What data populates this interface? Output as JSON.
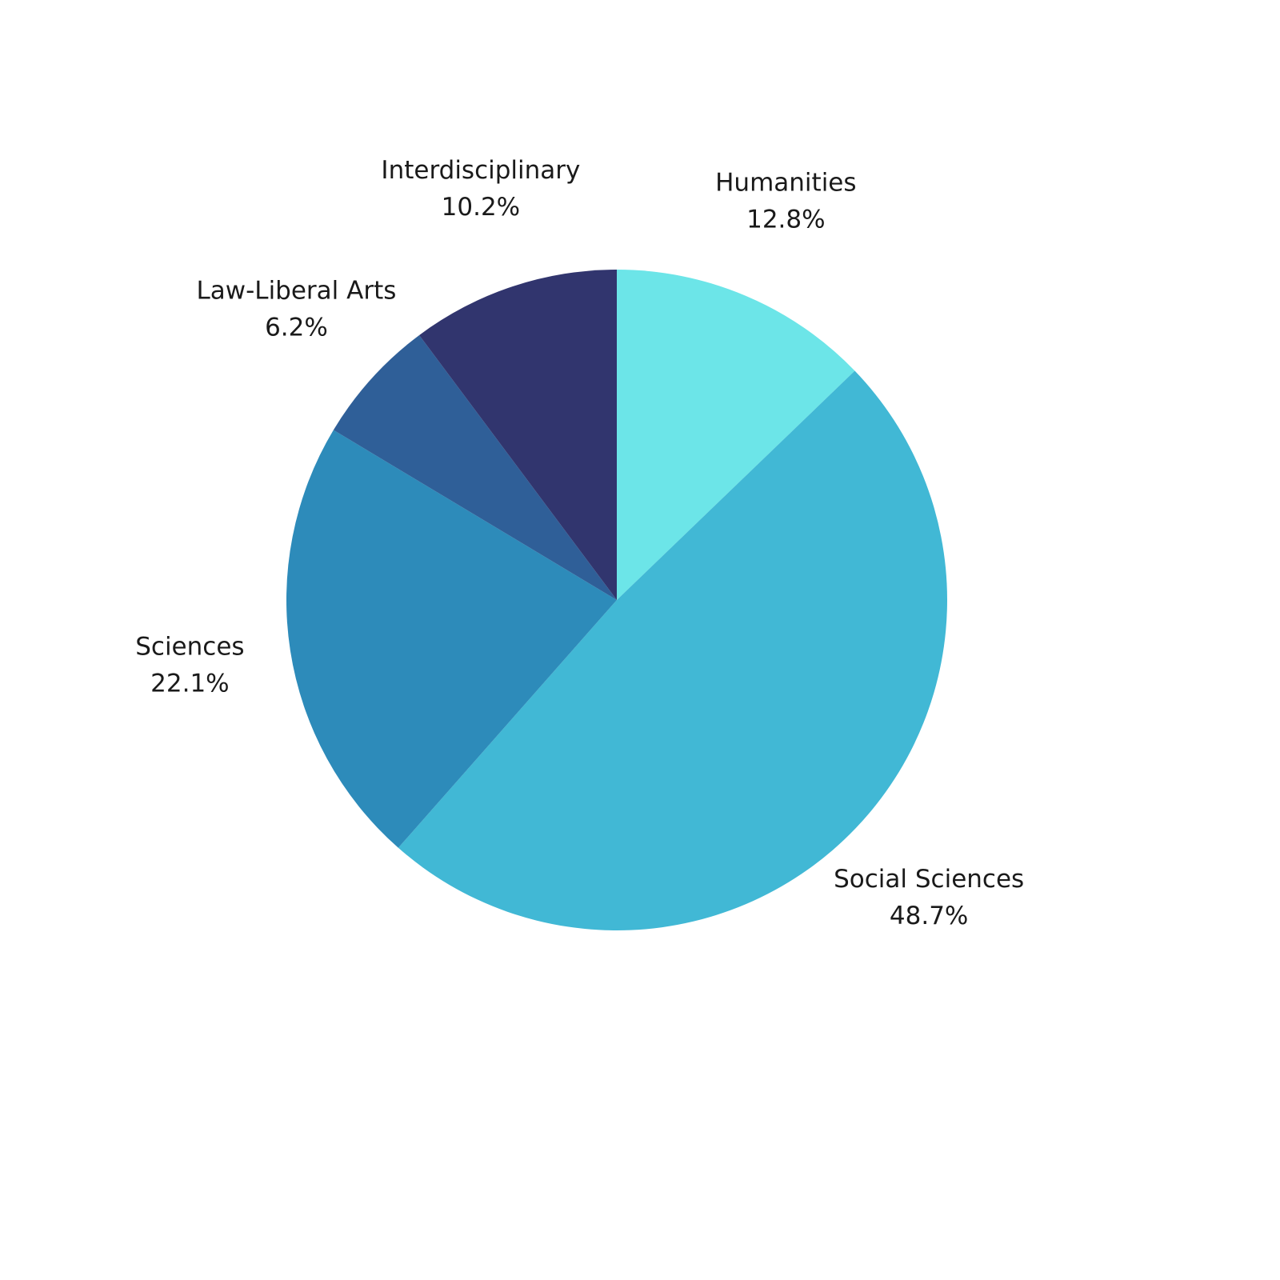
{
  "chart_data": {
    "type": "pie",
    "categories": [
      "Humanities",
      "Social Sciences",
      "Sciences",
      "Law-Liberal Arts",
      "Interdisciplinary"
    ],
    "values": [
      12.8,
      48.7,
      22.1,
      6.2,
      10.2
    ],
    "value_labels": [
      "12.8%",
      "48.7%",
      "22.1%",
      "6.2%",
      "10.2%"
    ],
    "colors": [
      "#6ce5e8",
      "#41b8d5",
      "#2d8bba",
      "#2f5f98",
      "#31356e"
    ]
  }
}
